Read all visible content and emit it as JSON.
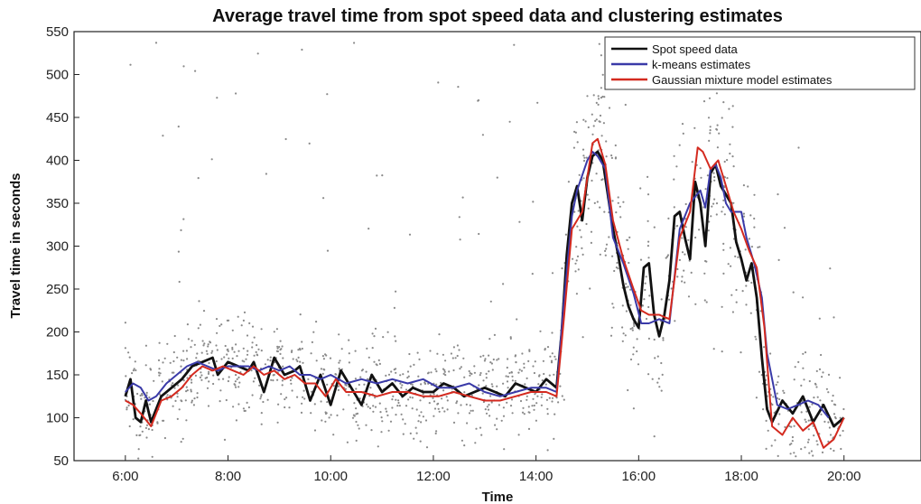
{
  "chart_data": {
    "type": "line",
    "title": "Average travel time from spot speed data and clustering estimates",
    "xlabel": "Time",
    "ylabel": "Travel time in seconds",
    "xlim": [
      5.0,
      21.5
    ],
    "ylim": [
      50,
      550
    ],
    "x_ticks": [
      6,
      8,
      10,
      12,
      14,
      16,
      18,
      20
    ],
    "x_tick_labels": [
      "6:00",
      "8:00",
      "10:00",
      "12:00",
      "14:00",
      "16:00",
      "18:00",
      "20:00"
    ],
    "y_ticks": [
      50,
      100,
      150,
      200,
      250,
      300,
      350,
      400,
      450,
      500,
      550
    ],
    "y_tick_labels": [
      "50",
      "100",
      "150",
      "200",
      "250",
      "300",
      "350",
      "400",
      "450",
      "500",
      "550"
    ],
    "legend_position": "top-right",
    "grid": false,
    "series": [
      {
        "name": "Spot speed data",
        "color": "#111111",
        "x": [
          6.0,
          6.1,
          6.2,
          6.3,
          6.4,
          6.5,
          6.7,
          6.9,
          7.1,
          7.3,
          7.5,
          7.7,
          7.8,
          8.0,
          8.2,
          8.4,
          8.5,
          8.7,
          8.9,
          9.1,
          9.3,
          9.4,
          9.6,
          9.8,
          10.0,
          10.2,
          10.4,
          10.6,
          10.8,
          11.0,
          11.2,
          11.4,
          11.6,
          11.8,
          12.0,
          12.2,
          12.4,
          12.6,
          12.8,
          13.0,
          13.2,
          13.4,
          13.6,
          13.8,
          14.0,
          14.2,
          14.4,
          14.5,
          14.6,
          14.7,
          14.8,
          14.9,
          15.0,
          15.1,
          15.2,
          15.3,
          15.4,
          15.5,
          15.6,
          15.7,
          15.8,
          15.9,
          16.0,
          16.1,
          16.2,
          16.3,
          16.4,
          16.5,
          16.6,
          16.7,
          16.8,
          16.9,
          17.0,
          17.1,
          17.2,
          17.3,
          17.4,
          17.5,
          17.6,
          17.7,
          17.8,
          17.9,
          18.0,
          18.1,
          18.2,
          18.3,
          18.4,
          18.5,
          18.6,
          18.8,
          19.0,
          19.2,
          19.4,
          19.6,
          19.8,
          20.0
        ],
        "y": [
          125,
          145,
          100,
          95,
          120,
          95,
          125,
          135,
          145,
          160,
          165,
          170,
          150,
          165,
          160,
          155,
          165,
          130,
          170,
          150,
          155,
          160,
          120,
          150,
          115,
          155,
          135,
          115,
          150,
          130,
          140,
          125,
          135,
          130,
          130,
          140,
          135,
          125,
          130,
          135,
          130,
          125,
          140,
          135,
          130,
          145,
          135,
          200,
          290,
          350,
          370,
          330,
          380,
          405,
          410,
          400,
          360,
          320,
          290,
          255,
          230,
          215,
          205,
          275,
          280,
          220,
          195,
          220,
          260,
          335,
          340,
          310,
          285,
          375,
          350,
          300,
          385,
          395,
          370,
          360,
          350,
          305,
          285,
          260,
          280,
          240,
          170,
          110,
          95,
          120,
          105,
          125,
          95,
          115,
          90,
          100
        ]
      },
      {
        "name": "k-means estimates",
        "color": "#3a3aa8",
        "x": [
          6.0,
          6.15,
          6.3,
          6.45,
          6.6,
          6.8,
          7.0,
          7.2,
          7.4,
          7.6,
          7.8,
          8.0,
          8.2,
          8.4,
          8.6,
          8.8,
          9.0,
          9.2,
          9.4,
          9.6,
          9.8,
          10.0,
          10.3,
          10.6,
          10.9,
          11.2,
          11.5,
          11.8,
          12.1,
          12.4,
          12.7,
          13.0,
          13.3,
          13.6,
          13.9,
          14.2,
          14.4,
          14.55,
          14.7,
          14.8,
          15.0,
          15.1,
          15.2,
          15.35,
          15.5,
          15.7,
          15.9,
          16.05,
          16.2,
          16.4,
          16.6,
          16.8,
          17.0,
          17.2,
          17.3,
          17.4,
          17.5,
          17.6,
          17.7,
          17.8,
          18.0,
          18.1,
          18.25,
          18.4,
          18.5,
          18.7,
          18.9,
          19.1,
          19.3,
          19.5,
          19.7
        ],
        "y": [
          130,
          140,
          135,
          120,
          125,
          140,
          150,
          160,
          165,
          160,
          155,
          160,
          160,
          160,
          155,
          160,
          155,
          160,
          150,
          150,
          145,
          150,
          140,
          145,
          140,
          145,
          140,
          145,
          135,
          135,
          140,
          130,
          125,
          130,
          135,
          135,
          130,
          240,
          335,
          365,
          400,
          410,
          405,
          390,
          310,
          280,
          245,
          210,
          210,
          215,
          210,
          320,
          350,
          365,
          345,
          390,
          395,
          380,
          350,
          340,
          340,
          310,
          280,
          240,
          175,
          115,
          110,
          115,
          120,
          115,
          100
        ]
      },
      {
        "name": "Gaussian mixture model estimates",
        "color": "#d42a1f",
        "x": [
          6.0,
          6.15,
          6.3,
          6.5,
          6.7,
          6.9,
          7.1,
          7.3,
          7.5,
          7.7,
          7.9,
          8.1,
          8.3,
          8.5,
          8.7,
          8.9,
          9.1,
          9.3,
          9.5,
          9.7,
          9.9,
          10.1,
          10.3,
          10.6,
          10.9,
          11.2,
          11.5,
          11.8,
          12.1,
          12.4,
          12.7,
          13.0,
          13.3,
          13.6,
          13.9,
          14.2,
          14.4,
          14.55,
          14.7,
          14.9,
          15.0,
          15.1,
          15.2,
          15.35,
          15.5,
          15.7,
          15.9,
          16.05,
          16.2,
          16.4,
          16.6,
          16.8,
          17.0,
          17.15,
          17.25,
          17.4,
          17.55,
          17.7,
          17.85,
          18.0,
          18.15,
          18.3,
          18.45,
          18.6,
          18.8,
          19.0,
          19.2,
          19.4,
          19.6,
          19.8,
          20.0
        ],
        "y": [
          120,
          115,
          105,
          90,
          120,
          125,
          135,
          150,
          160,
          155,
          160,
          155,
          150,
          160,
          150,
          155,
          145,
          150,
          140,
          140,
          125,
          145,
          130,
          130,
          125,
          130,
          130,
          125,
          125,
          130,
          125,
          120,
          120,
          125,
          130,
          130,
          125,
          220,
          320,
          340,
          380,
          420,
          425,
          395,
          330,
          285,
          250,
          225,
          220,
          220,
          215,
          310,
          340,
          415,
          410,
          390,
          400,
          370,
          340,
          320,
          295,
          275,
          205,
          90,
          80,
          100,
          85,
          95,
          65,
          75,
          100
        ]
      }
    ]
  }
}
